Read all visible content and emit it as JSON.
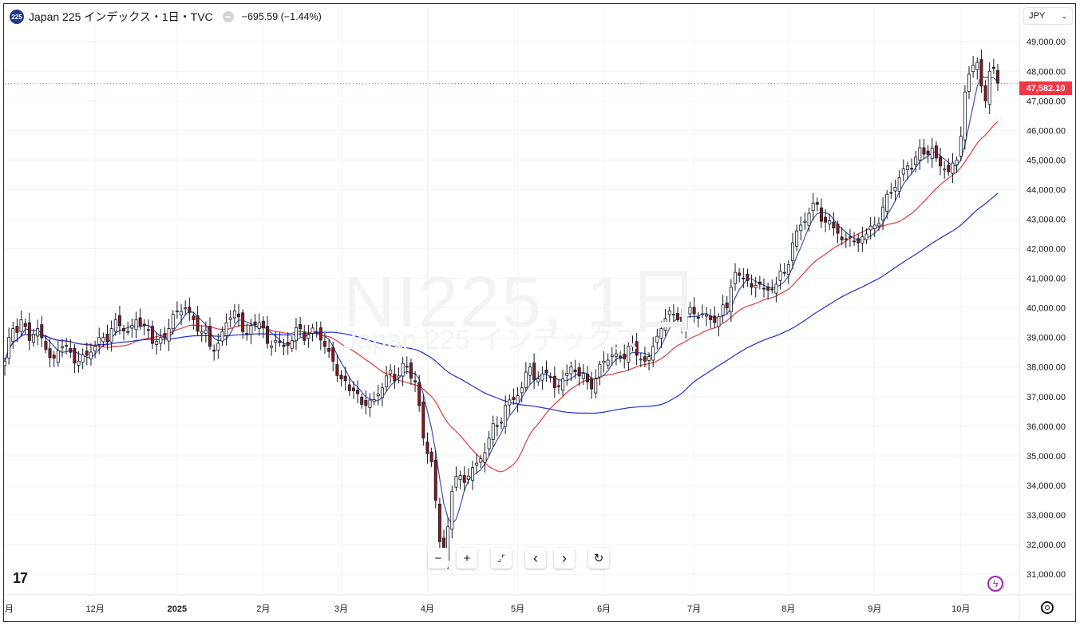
{
  "header": {
    "symbol_badge": "225",
    "title": "Japan 225 インデックス・1日・TVC",
    "change": "−695.59 (−1.44%)"
  },
  "currency": "JPY",
  "watermark": {
    "main": "NI225, 1日",
    "sub": "Japan 225 インデックス"
  },
  "last_price_label": "47,582.10",
  "colors": {
    "up_candle": "#ffffff",
    "down_candle": "#8b1a1a",
    "ma_fast": "#3f51b5",
    "ma_mid": "#e53935",
    "ma_slow": "#1e2fd6",
    "last_price": "#f23645",
    "grid": "#f0f3fa"
  },
  "nav_buttons": {
    "zoom_out": "−",
    "zoom_in": "+",
    "reset": "⌟⌜",
    "back": "‹",
    "forward": "›",
    "refresh": "↻"
  },
  "chart_data": {
    "type": "candlestick",
    "x_axis_labels": [
      {
        "label": "月",
        "day": 0
      },
      {
        "label": "12月",
        "day": 22
      },
      {
        "label": "2025",
        "day": 42
      },
      {
        "label": "2月",
        "day": 63
      },
      {
        "label": "3月",
        "day": 82
      },
      {
        "label": "4月",
        "day": 103
      },
      {
        "label": "5月",
        "day": 125
      },
      {
        "label": "6月",
        "day": 146
      },
      {
        "label": "7月",
        "day": 168
      },
      {
        "label": "8月",
        "day": 191
      },
      {
        "label": "9月",
        "day": 212
      },
      {
        "label": "10月",
        "day": 233
      }
    ],
    "y_ticks": [
      31000,
      32000,
      33000,
      34000,
      35000,
      36000,
      37000,
      38000,
      39000,
      40000,
      41000,
      42000,
      43000,
      44000,
      45000,
      46000,
      47000,
      48000,
      49000
    ],
    "y_tick_labels": [
      "31,000.00",
      "32,000.00",
      "33,000.00",
      "34,000.00",
      "35,000.00",
      "36,000.00",
      "37,000.00",
      "38,000.00",
      "39,000.00",
      "40,000.00",
      "41,000.00",
      "42,000.00",
      "43,000.00",
      "44,000.00",
      "45,000.00",
      "46,000.00",
      "47,000.00",
      "48,000.00",
      "49,000.00"
    ],
    "ylim": [
      30300,
      49600
    ],
    "last_price": 47582.1,
    "anchors": [
      [
        0,
        38200
      ],
      [
        2,
        39300
      ],
      [
        4,
        39600
      ],
      [
        6,
        38900
      ],
      [
        8,
        39300
      ],
      [
        10,
        38600
      ],
      [
        12,
        38300
      ],
      [
        14,
        38700
      ],
      [
        16,
        38500
      ],
      [
        18,
        38200
      ],
      [
        20,
        38400
      ],
      [
        22,
        38700
      ],
      [
        24,
        39000
      ],
      [
        26,
        39300
      ],
      [
        28,
        39400
      ],
      [
        30,
        39200
      ],
      [
        32,
        39600
      ],
      [
        34,
        39400
      ],
      [
        36,
        38800
      ],
      [
        38,
        39000
      ],
      [
        40,
        39300
      ],
      [
        42,
        39900
      ],
      [
        44,
        40000
      ],
      [
        46,
        39600
      ],
      [
        48,
        39200
      ],
      [
        50,
        38700
      ],
      [
        52,
        38800
      ],
      [
        54,
        39500
      ],
      [
        56,
        39900
      ],
      [
        58,
        39200
      ],
      [
        60,
        39400
      ],
      [
        62,
        39500
      ],
      [
        64,
        38800
      ],
      [
        66,
        38900
      ],
      [
        68,
        38700
      ],
      [
        70,
        38900
      ],
      [
        72,
        39300
      ],
      [
        74,
        39100
      ],
      [
        76,
        39200
      ],
      [
        78,
        38700
      ],
      [
        80,
        38200
      ],
      [
        82,
        37600
      ],
      [
        84,
        37200
      ],
      [
        86,
        37100
      ],
      [
        88,
        36700
      ],
      [
        90,
        36900
      ],
      [
        92,
        37300
      ],
      [
        94,
        37900
      ],
      [
        96,
        37700
      ],
      [
        98,
        38000
      ],
      [
        100,
        37500
      ],
      [
        101,
        36700
      ],
      [
        102,
        35600
      ],
      [
        104,
        34800
      ],
      [
        105,
        33500
      ],
      [
        106,
        32100
      ],
      [
        107,
        31500
      ],
      [
        108,
        32600
      ],
      [
        109,
        33800
      ],
      [
        110,
        34300
      ],
      [
        112,
        34100
      ],
      [
        114,
        34600
      ],
      [
        116,
        34900
      ],
      [
        118,
        35600
      ],
      [
        120,
        36000
      ],
      [
        122,
        36700
      ],
      [
        124,
        36900
      ],
      [
        126,
        37300
      ],
      [
        128,
        38000
      ],
      [
        130,
        37600
      ],
      [
        132,
        37800
      ],
      [
        134,
        37300
      ],
      [
        136,
        37600
      ],
      [
        138,
        38000
      ],
      [
        140,
        37700
      ],
      [
        142,
        37500
      ],
      [
        144,
        37600
      ],
      [
        146,
        38200
      ],
      [
        148,
        38400
      ],
      [
        150,
        38300
      ],
      [
        152,
        38700
      ],
      [
        154,
        38400
      ],
      [
        156,
        38200
      ],
      [
        158,
        38700
      ],
      [
        160,
        39300
      ],
      [
        162,
        39900
      ],
      [
        164,
        39600
      ],
      [
        166,
        39700
      ],
      [
        168,
        39800
      ],
      [
        170,
        39800
      ],
      [
        172,
        39600
      ],
      [
        174,
        39700
      ],
      [
        176,
        40000
      ],
      [
        177,
        40700
      ],
      [
        178,
        41200
      ],
      [
        180,
        41000
      ],
      [
        182,
        40700
      ],
      [
        184,
        40800
      ],
      [
        186,
        40600
      ],
      [
        188,
        40800
      ],
      [
        190,
        41200
      ],
      [
        192,
        42200
      ],
      [
        194,
        42800
      ],
      [
        196,
        43200
      ],
      [
        198,
        43500
      ],
      [
        200,
        42900
      ],
      [
        202,
        42700
      ],
      [
        204,
        42300
      ],
      [
        206,
        42400
      ],
      [
        208,
        42200
      ],
      [
        210,
        42500
      ],
      [
        212,
        42800
      ],
      [
        214,
        43400
      ],
      [
        216,
        43900
      ],
      [
        218,
        44400
      ],
      [
        220,
        44800
      ],
      [
        222,
        45100
      ],
      [
        224,
        45200
      ],
      [
        226,
        45400
      ],
      [
        228,
        44800
      ],
      [
        230,
        44600
      ],
      [
        232,
        45000
      ],
      [
        233,
        45800
      ],
      [
        234,
        47300
      ],
      [
        235,
        47900
      ],
      [
        236,
        48200
      ],
      [
        237,
        48300
      ],
      [
        238,
        47500
      ],
      [
        239,
        47000
      ],
      [
        240,
        48000
      ],
      [
        241,
        48100
      ],
      [
        242,
        47600
      ]
    ],
    "series": [
      {
        "name": "",
        "period": 5,
        "color": "#3f51b5"
      },
      {
        "name": "",
        "period": 20,
        "color": "#e53935"
      },
      {
        "name": "",
        "period": 60,
        "color": "#1e2fd6"
      }
    ]
  }
}
